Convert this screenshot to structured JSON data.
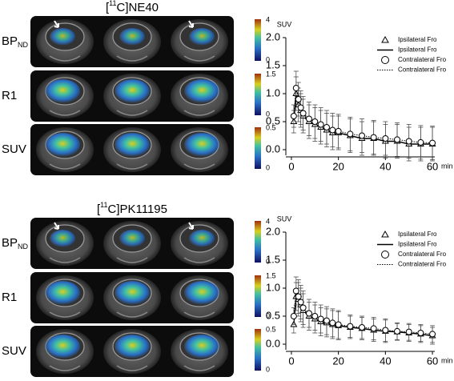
{
  "panels": [
    {
      "title": [
        "[",
        "11",
        "C]NE40"
      ],
      "rows": [
        {
          "label": "BP",
          "label_sub": "ND",
          "colorbar_ticks": [
            4,
            0
          ]
        },
        {
          "label": "R1",
          "colorbar_ticks": [
            1.5,
            0
          ]
        },
        {
          "label": "SUV",
          "colorbar_ticks": [
            0.5,
            0
          ]
        }
      ]
    },
    {
      "title": [
        "[",
        "11",
        "C]PK11195"
      ],
      "rows": [
        {
          "label": "BP",
          "label_sub": "ND",
          "colorbar_ticks": [
            4,
            0
          ]
        },
        {
          "label": "R1",
          "colorbar_ticks": [
            1.5,
            0
          ]
        },
        {
          "label": "SUV",
          "colorbar_ticks": [
            0.5,
            0
          ]
        }
      ]
    }
  ],
  "chart_data": [
    {
      "type": "line",
      "ylabel": "SUV",
      "xlabel": "min",
      "x": [
        1,
        2,
        3,
        4,
        5,
        7.5,
        10,
        12.5,
        15,
        17.5,
        20,
        25,
        30,
        35,
        40,
        45,
        50,
        55,
        60
      ],
      "xlim": [
        -1,
        61
      ],
      "xticks": [
        0,
        20,
        40,
        60
      ],
      "ylim": [
        -0.1,
        2.0
      ],
      "yticks": [
        {
          "value": 0,
          "label": "0.0"
        },
        0.5,
        {
          "value": 1,
          "label": "1.0"
        },
        1.5,
        {
          "value": 2,
          "label": "2.0"
        }
      ],
      "legend": [
        {
          "name": "Ipsilateral Fro",
          "symbol": "triangle"
        },
        {
          "name": "Ipsilateral Fro",
          "symbol": "solid"
        },
        {
          "name": "Contralateral Fro",
          "symbol": "circle"
        },
        {
          "name": "Contralateral Fro",
          "symbol": "dotted"
        }
      ],
      "series": [
        {
          "marker": "triangle",
          "line": "solid",
          "values": [
            0.5,
            1.0,
            0.8,
            0.7,
            0.6,
            0.5,
            0.45,
            0.4,
            0.35,
            0.3,
            0.3,
            0.25,
            0.2,
            0.2,
            0.15,
            0.15,
            0.1,
            0.1,
            0.1
          ],
          "errors": [
            0.2,
            0.3,
            0.3,
            0.3,
            0.3,
            0.3,
            0.3,
            0.3,
            0.3,
            0.3,
            0.3,
            0.3,
            0.3,
            0.3,
            0.3,
            0.3,
            0.3,
            0.3,
            0.3
          ]
        },
        {
          "marker": "circle",
          "line": "dotted",
          "values": [
            0.6,
            1.1,
            0.9,
            0.75,
            0.65,
            0.55,
            0.5,
            0.45,
            0.4,
            0.35,
            0.33,
            0.28,
            0.25,
            0.22,
            0.2,
            0.18,
            0.15,
            0.13,
            0.12
          ],
          "errors": [
            0.2,
            0.3,
            0.3,
            0.3,
            0.3,
            0.3,
            0.3,
            0.3,
            0.3,
            0.3,
            0.3,
            0.3,
            0.3,
            0.3,
            0.3,
            0.3,
            0.3,
            0.3,
            0.3
          ]
        }
      ]
    },
    {
      "type": "line",
      "ylabel": "SUV",
      "xlabel": "min",
      "x": [
        1,
        2,
        3,
        4,
        5,
        7.5,
        10,
        12.5,
        15,
        17.5,
        20,
        25,
        30,
        35,
        40,
        45,
        50,
        55,
        60
      ],
      "xlim": [
        -1,
        61
      ],
      "xticks": [
        0,
        20,
        40,
        60
      ],
      "ylim": [
        -0.1,
        2.0
      ],
      "yticks": [
        {
          "value": 0,
          "label": "0.0"
        },
        0.5,
        {
          "value": 1,
          "label": "1.0"
        },
        1.5,
        {
          "value": 2,
          "label": "2.0"
        }
      ],
      "legend": [
        {
          "name": "Ipsilateral Fro",
          "symbol": "triangle"
        },
        {
          "name": "Ipsilateral Fro",
          "symbol": "solid"
        },
        {
          "name": "Contralateral Fro",
          "symbol": "circle"
        },
        {
          "name": "Contralateral Fro",
          "symbol": "dotted"
        }
      ],
      "series": [
        {
          "marker": "triangle",
          "line": "solid",
          "values": [
            0.35,
            0.85,
            0.8,
            0.7,
            0.6,
            0.5,
            0.45,
            0.4,
            0.38,
            0.35,
            0.33,
            0.3,
            0.28,
            0.25,
            0.23,
            0.22,
            0.2,
            0.18,
            0.15
          ],
          "errors": [
            0.15,
            0.25,
            0.3,
            0.3,
            0.3,
            0.25,
            0.25,
            0.25,
            0.25,
            0.25,
            0.25,
            0.2,
            0.2,
            0.2,
            0.2,
            0.15,
            0.15,
            0.15,
            0.15
          ]
        },
        {
          "marker": "circle",
          "line": "dotted",
          "values": [
            0.5,
            0.95,
            0.85,
            0.75,
            0.65,
            0.55,
            0.5,
            0.45,
            0.42,
            0.38,
            0.35,
            0.32,
            0.3,
            0.28,
            0.25,
            0.23,
            0.22,
            0.2,
            0.18
          ],
          "errors": [
            0.15,
            0.25,
            0.3,
            0.3,
            0.3,
            0.25,
            0.25,
            0.25,
            0.25,
            0.25,
            0.25,
            0.2,
            0.2,
            0.2,
            0.2,
            0.15,
            0.15,
            0.15,
            0.15
          ]
        }
      ]
    }
  ]
}
